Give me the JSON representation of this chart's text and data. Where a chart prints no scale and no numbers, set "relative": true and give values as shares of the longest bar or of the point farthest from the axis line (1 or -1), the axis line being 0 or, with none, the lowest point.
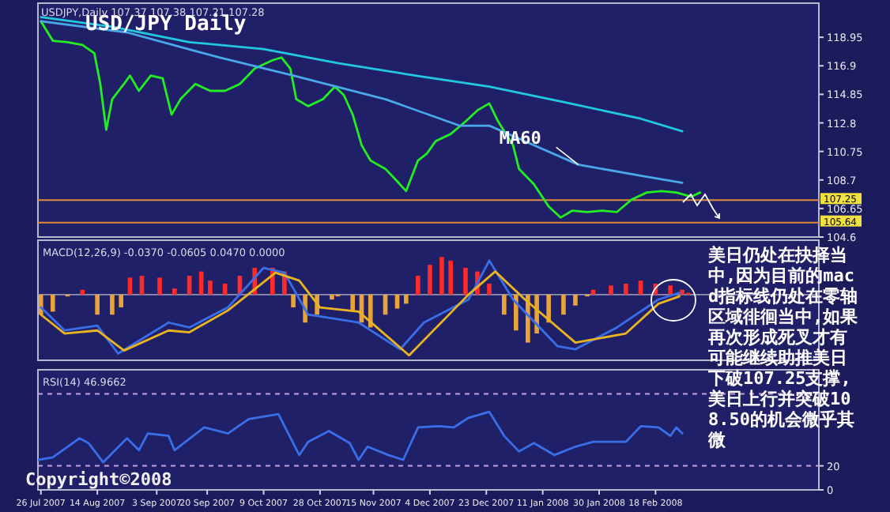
{
  "chart_data": [
    {
      "type": "line",
      "title": "USD/JPY Daily",
      "subtitle": "USDJPY,Daily 107.37 107.38 107.21 107.28",
      "xlim": [
        "2007-07-25",
        "2008-04-13"
      ],
      "ylim": [
        104.6,
        121.4
      ],
      "yticks": [
        118.95,
        116.9,
        114.85,
        112.8,
        110.75,
        108.7,
        106.65,
        104.6
      ],
      "tick_labels": "y",
      "series": [
        {
          "color": "#22ee22",
          "x": [
            "2007-07-26",
            "2007-07-30",
            "2007-08-04",
            "2007-08-09",
            "2007-08-13",
            "2007-08-15",
            "2007-08-17",
            "2007-08-19",
            "2007-08-23",
            "2007-08-25",
            "2007-08-28",
            "2007-09-01",
            "2007-09-05",
            "2007-09-08",
            "2007-09-11",
            "2007-09-16",
            "2007-09-21",
            "2007-09-26",
            "2007-10-01",
            "2007-10-06",
            "2007-10-12",
            "2007-10-15",
            "2007-10-18",
            "2007-10-20",
            "2007-10-24",
            "2007-10-29",
            "2007-11-02",
            "2007-11-05",
            "2007-11-08",
            "2007-11-11",
            "2007-11-14",
            "2007-11-19",
            "2007-11-23",
            "2007-11-26",
            "2007-11-30",
            "2007-12-03",
            "2007-12-06",
            "2007-12-11",
            "2007-12-16",
            "2007-12-20",
            "2007-12-24",
            "2007-12-27",
            "2008-01-01",
            "2008-01-03",
            "2008-01-08",
            "2008-01-13",
            "2008-01-17",
            "2008-01-21",
            "2008-01-26",
            "2008-01-31",
            "2008-02-05",
            "2008-02-10",
            "2008-02-15",
            "2008-02-20",
            "2008-02-25",
            "2008-03-01",
            "2008-03-04"
          ],
          "values": [
            120.1,
            118.7,
            118.6,
            118.4,
            117.8,
            115.6,
            112.3,
            114.5,
            115.6,
            116.2,
            115.1,
            116.2,
            116.0,
            113.4,
            114.5,
            115.6,
            115.1,
            115.1,
            115.6,
            116.7,
            117.3,
            117.5,
            116.7,
            114.5,
            114.0,
            114.5,
            115.4,
            114.8,
            113.4,
            111.2,
            110.1,
            109.5,
            108.6,
            107.9,
            110.1,
            110.6,
            111.5,
            112.0,
            112.9,
            113.7,
            114.2,
            112.9,
            111.2,
            109.5,
            108.4,
            106.8,
            106.0,
            106.5,
            106.4,
            106.5,
            106.4,
            107.3,
            107.8,
            107.9,
            107.8,
            107.5,
            107.8
          ]
        },
        {
          "color": "#4aa8e8",
          "x": [
            "2007-07-26",
            "2007-08-24",
            "2007-09-24",
            "2007-10-19",
            "2007-11-19",
            "2007-12-14",
            "2007-12-24",
            "2008-01-08",
            "2008-01-23",
            "2008-02-13",
            "2008-02-27"
          ],
          "values": [
            120.1,
            119.3,
            117.5,
            116.2,
            114.5,
            112.6,
            112.6,
            111.2,
            109.8,
            109.0,
            108.5
          ]
        },
        {
          "color": "#22c8e0",
          "x": [
            "2007-07-26",
            "2007-08-19",
            "2007-09-14",
            "2007-10-09",
            "2007-11-03",
            "2007-11-29",
            "2007-12-24",
            "2008-01-18",
            "2008-02-13",
            "2008-02-27"
          ],
          "values": [
            120.4,
            119.7,
            118.6,
            118.1,
            117.1,
            116.2,
            115.4,
            114.3,
            113.1,
            112.2
          ]
        }
      ],
      "ref_lines": [
        {
          "axis": "y",
          "value": 107.25,
          "label": "107.25",
          "color": "#e08a3a"
        },
        {
          "axis": "y",
          "value": 105.64,
          "label": "105.64",
          "color": "#e08a3a"
        }
      ],
      "annotations": [
        {
          "text": "MA60",
          "x": "2008-01-23",
          "y": 109.8
        }
      ]
    },
    {
      "type": "bar",
      "title": "MACD(12,26,9) -0.0370 -0.0605 0.0470 0.0000",
      "relative": true,
      "tick_labels": false,
      "xlim": [
        "2007-07-25",
        "2008-04-13"
      ],
      "series": [
        {
          "color": "#ff2a2a",
          "x": [
            "2007-08-09",
            "2007-08-25",
            "2007-08-29",
            "2007-09-04",
            "2007-09-09",
            "2007-09-14",
            "2007-09-18",
            "2007-09-21",
            "2007-09-26",
            "2007-10-01",
            "2007-10-06",
            "2007-10-12",
            "2007-10-16",
            "2007-11-30",
            "2007-12-04",
            "2007-12-08",
            "2007-12-11",
            "2007-12-16",
            "2007-12-20",
            "2007-12-24",
            "2008-01-28",
            "2008-02-03",
            "2008-02-08",
            "2008-02-13",
            "2008-02-18",
            "2008-02-23",
            "2008-02-27",
            "2008-02-29"
          ],
          "values": [
            0.08,
            0.28,
            0.31,
            0.28,
            0.1,
            0.31,
            0.38,
            0.23,
            0.18,
            0.31,
            0.44,
            0.44,
            0.38,
            0.31,
            0.49,
            0.62,
            0.56,
            0.44,
            0.38,
            0.18,
            0.08,
            0.15,
            0.18,
            0.23,
            0.18,
            0.15,
            0.08,
            0.03
          ]
        },
        {
          "color": "#e8a43a",
          "x": [
            "2007-07-26",
            "2007-07-30",
            "2007-08-04",
            "2007-08-14",
            "2007-08-19",
            "2007-08-22",
            "2007-10-19",
            "2007-10-23",
            "2007-10-27",
            "2007-11-01",
            "2007-11-03",
            "2007-11-08",
            "2007-11-11",
            "2007-11-14",
            "2007-11-19",
            "2007-11-23",
            "2007-11-26",
            "2007-12-29",
            "2008-01-02",
            "2008-01-06",
            "2008-01-09",
            "2008-01-13",
            "2008-01-18",
            "2008-01-22",
            "2008-01-26"
          ],
          "values": [
            -0.33,
            -0.28,
            -0.03,
            -0.33,
            -0.33,
            -0.21,
            -0.21,
            -0.46,
            -0.33,
            -0.08,
            -0.03,
            -0.26,
            -0.46,
            -0.54,
            -0.33,
            -0.23,
            -0.15,
            -0.33,
            -0.59,
            -0.79,
            -0.64,
            -0.46,
            -0.33,
            -0.18,
            -0.03
          ]
        },
        {
          "type": "line",
          "color": "#3a6ee8",
          "x": [
            "2007-07-26",
            "2007-08-03",
            "2007-08-14",
            "2007-08-21",
            "2007-09-07",
            "2007-09-14",
            "2007-09-27",
            "2007-10-09",
            "2007-10-16",
            "2007-10-24",
            "2007-11-10",
            "2007-11-24",
            "2007-12-02",
            "2007-12-17",
            "2007-12-24",
            "2008-01-01",
            "2008-01-16",
            "2008-01-22",
            "2008-02-05",
            "2008-02-19",
            "2008-02-26"
          ],
          "values": [
            -0.21,
            -0.59,
            -0.51,
            -0.97,
            -0.46,
            -0.54,
            -0.21,
            0.44,
            0.36,
            -0.33,
            -0.46,
            -0.9,
            -0.46,
            -0.08,
            0.56,
            -0.08,
            -0.85,
            -0.9,
            -0.54,
            -0.08,
            0.03
          ]
        },
        {
          "type": "line",
          "color": "#e8b420",
          "x": [
            "2007-07-26",
            "2007-08-03",
            "2007-08-14",
            "2007-08-23",
            "2007-09-07",
            "2007-09-14",
            "2007-09-27",
            "2007-10-13",
            "2007-10-21",
            "2007-10-28",
            "2007-11-10",
            "2007-11-27",
            "2007-12-17",
            "2007-12-26",
            "2008-01-05",
            "2008-01-22",
            "2008-02-08",
            "2008-02-19",
            "2008-02-26"
          ],
          "values": [
            -0.33,
            -0.64,
            -0.59,
            -0.92,
            -0.59,
            -0.62,
            -0.26,
            0.36,
            0.23,
            -0.21,
            -0.28,
            -1,
            0,
            0.38,
            -0.08,
            -0.79,
            -0.64,
            -0.15,
            -0.03
          ]
        }
      ]
    },
    {
      "type": "line",
      "title": "RSI(14) 46.9662",
      "xlim": [
        "2007-07-25",
        "2008-04-13"
      ],
      "ylim": [
        0,
        100
      ],
      "yticks": [
        0,
        20
      ],
      "xticks": [
        {
          "value": "2007-07-26",
          "label": "26 Jul 2007"
        },
        {
          "value": "2007-08-14",
          "label": "14 Aug 2007"
        },
        {
          "value": "2007-09-03",
          "label": "3 Sep 2007"
        },
        {
          "value": "2007-09-20",
          "label": "20 Sep 2007"
        },
        {
          "value": "2007-10-09",
          "label": "9 Oct 2007"
        },
        {
          "value": "2007-10-28",
          "label": "28 Oct 2007"
        },
        {
          "value": "2007-11-15",
          "label": "15 Nov 2007"
        },
        {
          "value": "2007-12-04",
          "label": "4 Dec 2007"
        },
        {
          "value": "2007-12-23",
          "label": "23 Dec 2007"
        },
        {
          "value": "2008-01-11",
          "label": "11 Jan 2008"
        },
        {
          "value": "2008-01-30",
          "label": "30 Jan 2008"
        },
        {
          "value": "2008-02-18",
          "label": "18 Feb 2008"
        }
      ],
      "series": [
        {
          "color": "#3a6ee8",
          "x": [
            "2007-07-25",
            "2007-07-30",
            "2007-08-08",
            "2007-08-11",
            "2007-08-16",
            "2007-08-24",
            "2007-08-28",
            "2007-08-31",
            "2007-09-07",
            "2007-09-09",
            "2007-09-19",
            "2007-09-27",
            "2007-10-04",
            "2007-10-14",
            "2007-10-21",
            "2007-10-24",
            "2007-10-31",
            "2007-11-07",
            "2007-11-10",
            "2007-11-13",
            "2007-11-20",
            "2007-11-25",
            "2007-11-30",
            "2007-12-07",
            "2007-12-12",
            "2007-12-17",
            "2007-12-24",
            "2007-12-29",
            "2008-01-03",
            "2008-01-08",
            "2008-01-15",
            "2008-01-22",
            "2008-01-28",
            "2008-02-08",
            "2008-02-13",
            "2008-02-19",
            "2008-02-23",
            "2008-02-25",
            "2008-02-27"
          ],
          "values": [
            25,
            27,
            43,
            39,
            23,
            43,
            33,
            47,
            45,
            33,
            52,
            47,
            59,
            63,
            29,
            40,
            49,
            39,
            25,
            36,
            29,
            25,
            52,
            53,
            52,
            60,
            65,
            45,
            32,
            39,
            29,
            36,
            40,
            40,
            53,
            52,
            45,
            52,
            47
          ]
        }
      ],
      "ref_lines": [
        {
          "axis": "y",
          "value": 80,
          "color": "#c8a0d8",
          "line_style": "dashed"
        },
        {
          "axis": "y",
          "value": 20,
          "color": "#c8a0d8",
          "line_style": "dashed"
        }
      ],
      "annotations": [
        "美日仍处在抉择当中,因为目前的macd指标线仍处在零轴区域徘徊当中,如果再次形成死叉才有可能继续助推美日下破107.25支撑,美日上行并突破108.50的机会微乎其微",
        "Copyright©2008"
      ]
    }
  ]
}
